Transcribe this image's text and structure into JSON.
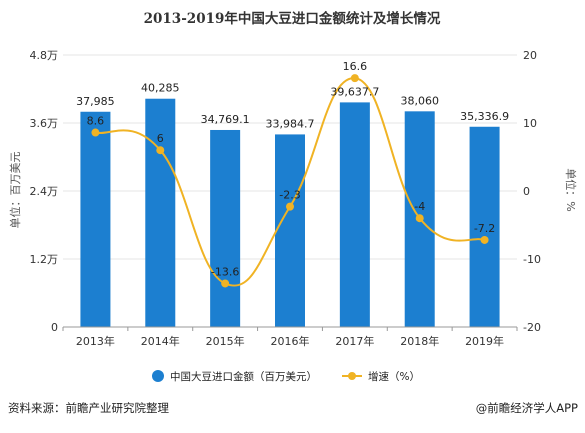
{
  "chart_data": {
    "type": "bar",
    "title": "2013-2019年中国大豆进口金额统计及增长情况",
    "categories": [
      "2013年",
      "2014年",
      "2015年",
      "2016年",
      "2017年",
      "2018年",
      "2019年"
    ],
    "series": [
      {
        "name": "中国大豆进口金额（百万美元）",
        "type": "bar",
        "axis": "left",
        "color": "#1c7fd0",
        "values": [
          37985,
          40285,
          34769.1,
          33984.7,
          39637.7,
          38060,
          35336.9
        ],
        "labels": [
          "37,985",
          "40,285",
          "34,769.1",
          "33,984.7",
          "39,637.7",
          "38,060",
          "35,336.9"
        ]
      },
      {
        "name": "增速（%）",
        "type": "line",
        "axis": "right",
        "color": "#f0b324",
        "values": [
          8.6,
          6,
          -13.6,
          -2.3,
          16.6,
          -4,
          -7.2
        ],
        "labels": [
          "8.6",
          "6",
          "-13.6",
          "-2.3",
          "16.6",
          "-4",
          "-7.2"
        ]
      }
    ],
    "ylabel": "单位：百万美元",
    "y2label": "单位：%",
    "ylim": [
      0,
      48000
    ],
    "yticks": [
      0,
      12000,
      24000,
      36000,
      48000
    ],
    "ytick_labels": [
      "0",
      "1.2万",
      "2.4万",
      "3.6万",
      "4.8万"
    ],
    "y2lim": [
      -20,
      20
    ],
    "y2ticks": [
      -20,
      -10,
      0,
      10,
      20
    ],
    "y2tick_labels": [
      "-20",
      "-10",
      "0",
      "10",
      "20"
    ],
    "grid": true,
    "legend": "bottom"
  },
  "footer": {
    "source": "资料来源：前瞻产业研究院整理",
    "brand": "@前瞻经济学人APP"
  }
}
